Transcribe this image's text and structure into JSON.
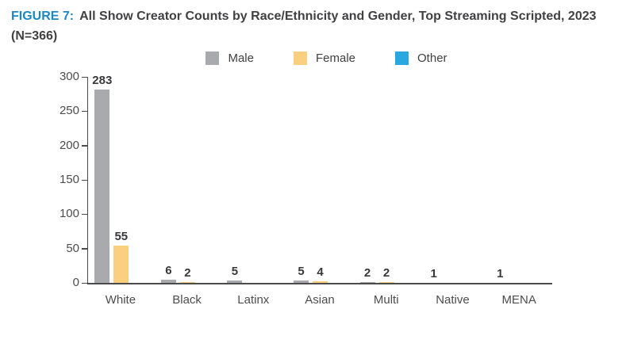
{
  "title": {
    "figure_label": "FIGURE 7:",
    "text": "All Show Creator Counts by Race/Ethnicity and Gender, Top Streaming Scripted, 2023",
    "sample": "(N=366)",
    "accent_color": "#1C87C7"
  },
  "chart_data": {
    "type": "bar",
    "title": "All Show Creator Counts by Race/Ethnicity and Gender, Top Streaming Scripted, 2023 (N=366)",
    "categories": [
      "White",
      "Black",
      "Latinx",
      "Asian",
      "Multi",
      "Native",
      "MENA"
    ],
    "series": [
      {
        "name": "Male",
        "color": "#A8AAAD",
        "values": [
          283,
          6,
          5,
          5,
          2,
          1,
          1
        ]
      },
      {
        "name": "Female",
        "color": "#FBCF80",
        "values": [
          55,
          2,
          0,
          4,
          2,
          0,
          0
        ]
      },
      {
        "name": "Other",
        "color": "#29A8E0",
        "values": [
          0,
          0,
          0,
          0,
          0,
          0,
          0
        ]
      }
    ],
    "xlabel": "",
    "ylabel": "",
    "ylim": [
      0,
      300
    ],
    "yticks": [
      0,
      50,
      100,
      150,
      200,
      250,
      300
    ],
    "grid": false,
    "legend_position": "top",
    "bar_labels": true
  }
}
